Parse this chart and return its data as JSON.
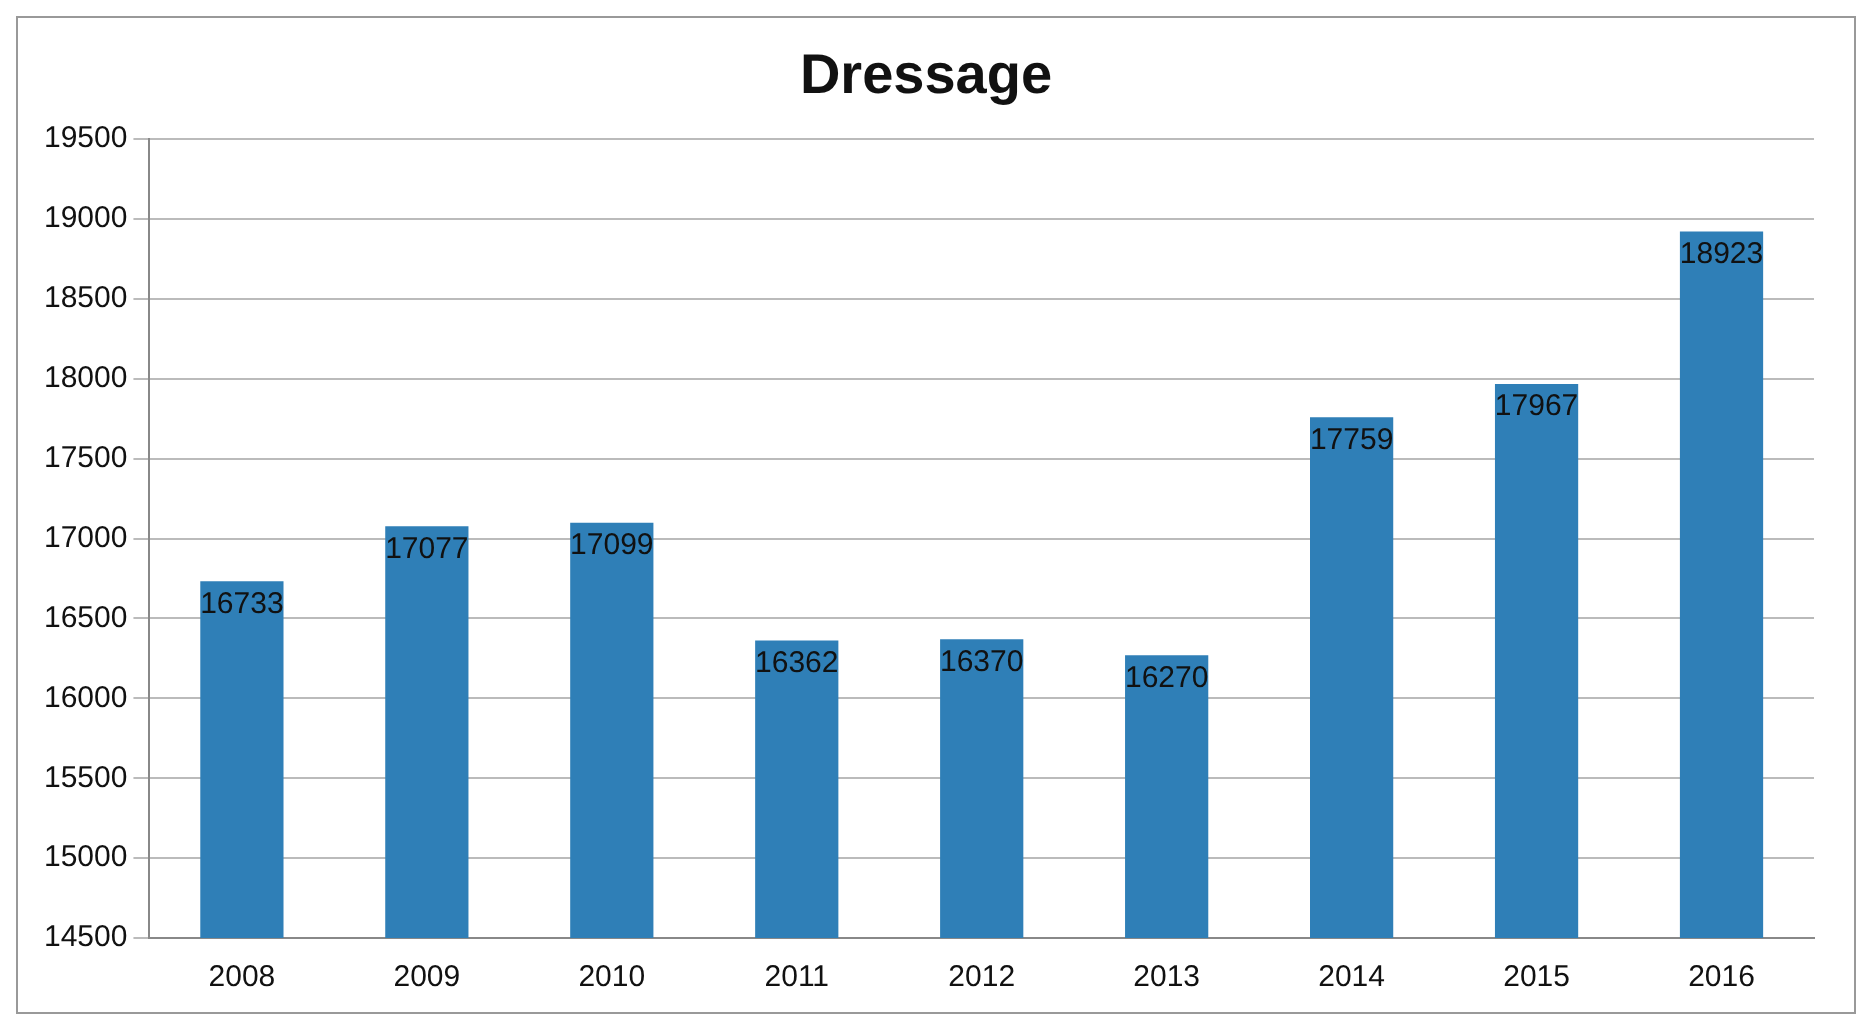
{
  "chart_data": {
    "type": "bar",
    "title": "Dressage",
    "categories": [
      "2008",
      "2009",
      "2010",
      "2011",
      "2012",
      "2013",
      "2014",
      "2015",
      "2016"
    ],
    "values": [
      16733,
      17077,
      17099,
      16362,
      16370,
      16270,
      17759,
      17967,
      18923
    ],
    "color": "#2f7fb7",
    "ylim": [
      14500,
      19500
    ],
    "yticks": [
      14500,
      15000,
      15500,
      16000,
      16500,
      17000,
      17500,
      18000,
      18500,
      19000,
      19500
    ],
    "grid": "y",
    "legend": false,
    "data_labels": true
  }
}
